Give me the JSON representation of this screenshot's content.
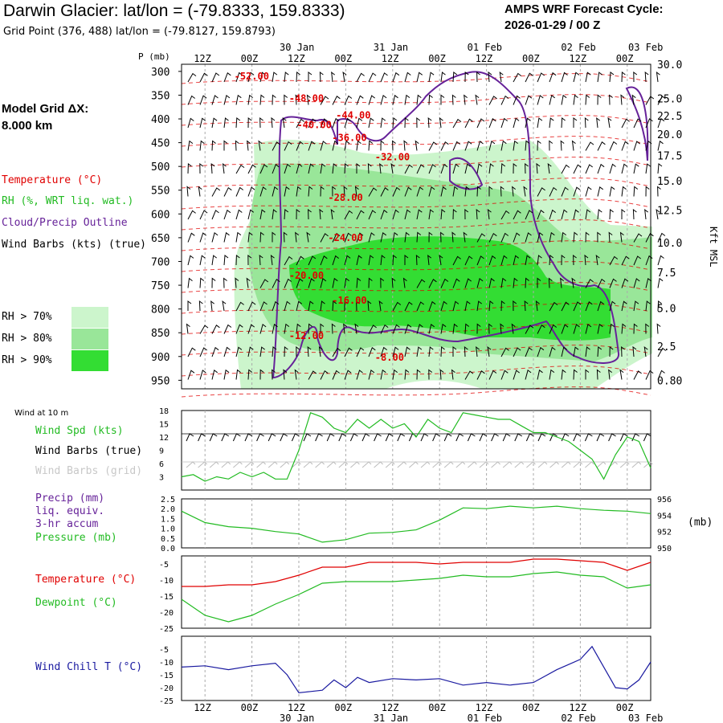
{
  "header": {
    "title": "Darwin Glacier:  lat/lon = (-79.8333, 159.8333)",
    "subtitle": "Grid Point (376, 488) lat/lon = (-79.8127, 159.8793)",
    "cycle_line1": "AMPS WRF Forecast Cycle:",
    "cycle_line2": "2026-01-29 / 00  Z"
  },
  "model_grid": {
    "line1": "Model Grid ΔX:",
    "line2": " 8.000 km"
  },
  "legend": {
    "temperature": "Temperature (°C)",
    "rh": "RH (%, WRT liq. wat.)",
    "cloud": "Cloud/Precip Outline",
    "wind": "Wind Barbs (kts) (true)",
    "rh70": "RH > 70%",
    "rh80": "RH > 80%",
    "rh90": "RH > 90%"
  },
  "colors": {
    "temperature": "#e00000",
    "rh_label": "#22bb22",
    "cloud": "#662299",
    "rh70": "#ccf5cc",
    "rh80": "#99e699",
    "rh90": "#33dd33",
    "wind_chill": "#1a1aa0",
    "grid": "#aaaaaa"
  },
  "time_axis": {
    "top_row": [
      "12Z",
      "00Z",
      "12Z",
      "00Z",
      "12Z",
      "00Z",
      "12Z",
      "00Z",
      "12Z",
      "00Z"
    ],
    "top_dates": [
      "30 Jan",
      "31 Jan",
      "01 Feb",
      "02 Feb",
      "03 Feb"
    ],
    "bottom_row": [
      "12Z",
      "00Z",
      "12Z",
      "00Z",
      "12Z",
      "00Z",
      "12Z",
      "00Z",
      "12Z",
      "00Z"
    ],
    "bottom_dates": [
      "30 Jan",
      "31 Jan",
      "01 Feb",
      "02 Feb",
      "03 Feb"
    ]
  },
  "panels": {
    "wind10": {
      "heading": "Wind at 10 m",
      "label_spd": "Wind Spd (kts)",
      "label_true": "Wind Barbs (true)",
      "label_grid": "Wind Barbs (grid)"
    },
    "precip": {
      "label1": "Precip (mm)",
      "label2": "liq. equiv.",
      "label3": "3-hr accum",
      "label4": "Pressure (mb)",
      "right_unit": "(mb)"
    },
    "temp": {
      "label1": "Temperature (°C)",
      "label2": "Dewpoint (°C)"
    },
    "chill": {
      "label": "Wind Chill T (°C)"
    }
  },
  "chart_data": [
    {
      "type": "heatmap",
      "panel": "time-height cross-section",
      "ylabel": "P (mb)",
      "y2label": "Kft MSL",
      "pressure_ticks": [
        300,
        350,
        400,
        450,
        500,
        550,
        600,
        650,
        700,
        750,
        800,
        850,
        900,
        950
      ],
      "kft_ticks": [
        "30.0",
        "25.0",
        "22.5",
        "20.0",
        "17.5",
        "15.0",
        "12.5",
        "10.0",
        "7.5",
        "5.0",
        "2.5",
        "0.80"
      ],
      "kft_tick_pressure": [
        285,
        357,
        393,
        432,
        477,
        530,
        592,
        660,
        723,
        798,
        878,
        950
      ],
      "temperature_contour_labels": [
        {
          "text": "-52.00",
          "hour": 18,
          "p": 310
        },
        {
          "text": "-48.00",
          "hour": 32,
          "p": 357
        },
        {
          "text": "-44.00",
          "hour": 44,
          "p": 392
        },
        {
          "text": "-40.00",
          "hour": 34,
          "p": 413
        },
        {
          "text": "-36.00",
          "hour": 43,
          "p": 440
        },
        {
          "text": "-32.00",
          "hour": 54,
          "p": 480
        },
        {
          "text": "-28.00",
          "hour": 42,
          "p": 566
        },
        {
          "text": "-24.00",
          "hour": 42,
          "p": 650
        },
        {
          "text": "-20.00",
          "hour": 32,
          "p": 730
        },
        {
          "text": "-16.00",
          "hour": 43,
          "p": 782
        },
        {
          "text": "-12.00",
          "hour": 32,
          "p": 856
        },
        {
          "text": "-8.00",
          "hour": 54,
          "p": 902
        }
      ]
    },
    {
      "type": "line",
      "panel": "wind10",
      "x_hours": [
        0,
        3,
        6,
        9,
        12,
        15,
        18,
        21,
        24,
        27,
        30,
        33,
        36,
        39,
        42,
        45,
        48,
        51,
        54,
        57,
        60,
        63,
        66,
        69,
        72,
        75,
        78,
        81,
        84,
        87,
        90,
        93,
        96,
        99,
        102,
        105,
        108,
        111,
        114,
        117,
        120
      ],
      "series": [
        {
          "name": "Wind Spd (kts)",
          "values": [
            3,
            3.5,
            2,
            3,
            2.5,
            4,
            3,
            4,
            2.5,
            2.5,
            9,
            17.5,
            16.5,
            14,
            13,
            16,
            14,
            16,
            14,
            15,
            12,
            16,
            14,
            13,
            17.5,
            17,
            16.5,
            16,
            16,
            14.5,
            13,
            13,
            12,
            11,
            9,
            7,
            2.5,
            8,
            12,
            11,
            5
          ]
        }
      ],
      "ylim": [
        0,
        18
      ],
      "yticks": [
        3,
        6,
        9,
        12,
        15,
        18
      ]
    },
    {
      "type": "line",
      "panel": "precip-pressure",
      "x_hours": [
        0,
        6,
        12,
        18,
        24,
        30,
        36,
        42,
        48,
        54,
        60,
        66,
        72,
        78,
        84,
        90,
        96,
        102,
        108,
        114,
        120
      ],
      "series": [
        {
          "name": "Pressure (mb)",
          "values": [
            954.5,
            953.1,
            952.6,
            952.4,
            952.0,
            951.7,
            950.7,
            951.0,
            951.8,
            951.9,
            952.2,
            953.4,
            954.9,
            954.8,
            955.1,
            954.9,
            955.1,
            954.8,
            954.6,
            954.5,
            954.2
          ]
        }
      ],
      "y_left_ticks": [
        "2.5",
        "2.0",
        "1.5",
        "1.0",
        "0.5",
        "0.0"
      ],
      "ylim_right": [
        950,
        956
      ],
      "y_right_ticks": [
        956,
        954,
        952,
        950
      ]
    },
    {
      "type": "line",
      "panel": "temp-dewpoint",
      "x_hours": [
        0,
        6,
        12,
        18,
        24,
        30,
        36,
        42,
        48,
        54,
        60,
        66,
        72,
        78,
        84,
        90,
        96,
        102,
        108,
        114,
        120
      ],
      "series": [
        {
          "name": "Temperature (°C)",
          "values": [
            -12,
            -12,
            -11.5,
            -11.5,
            -10.5,
            -8.5,
            -6,
            -6,
            -4.5,
            -4.5,
            -4.5,
            -5,
            -4.5,
            -4.5,
            -4.5,
            -3.5,
            -3.5,
            -4,
            -4.5,
            -7,
            -4.5
          ]
        },
        {
          "name": "Dewpoint (°C)",
          "values": [
            -16,
            -21,
            -23,
            -21,
            -17.5,
            -14.5,
            -11,
            -10.5,
            -10.5,
            -10.5,
            -10,
            -9.5,
            -8.5,
            -9,
            -9,
            -8,
            -7.5,
            -8.5,
            -9,
            -12.5,
            -11.5
          ]
        }
      ],
      "ylim": [
        -25,
        -2.5
      ],
      "yticks": [
        -5,
        -10,
        -15,
        -20,
        -25
      ]
    },
    {
      "type": "line",
      "panel": "wind-chill",
      "x_hours": [
        0,
        6,
        12,
        18,
        24,
        27,
        30,
        33,
        36,
        39,
        42,
        45,
        48,
        54,
        60,
        66,
        72,
        78,
        84,
        90,
        96,
        99,
        102,
        105,
        108,
        111,
        114,
        117,
        120
      ],
      "series": [
        {
          "name": "Wind Chill T (°C)",
          "values": [
            -12,
            -11.5,
            -13,
            -11.5,
            -10.5,
            -15,
            -22,
            -21.5,
            -21,
            -17,
            -20,
            -16,
            -18,
            -16.5,
            -17,
            -16.5,
            -19,
            -18,
            -19,
            -18,
            -13,
            -11,
            -9,
            -4,
            -12,
            -20,
            -20.5,
            -17,
            -10
          ]
        }
      ],
      "ylim": [
        -25,
        0
      ],
      "yticks": [
        -5,
        -10,
        -15,
        -20,
        -25
      ]
    }
  ]
}
